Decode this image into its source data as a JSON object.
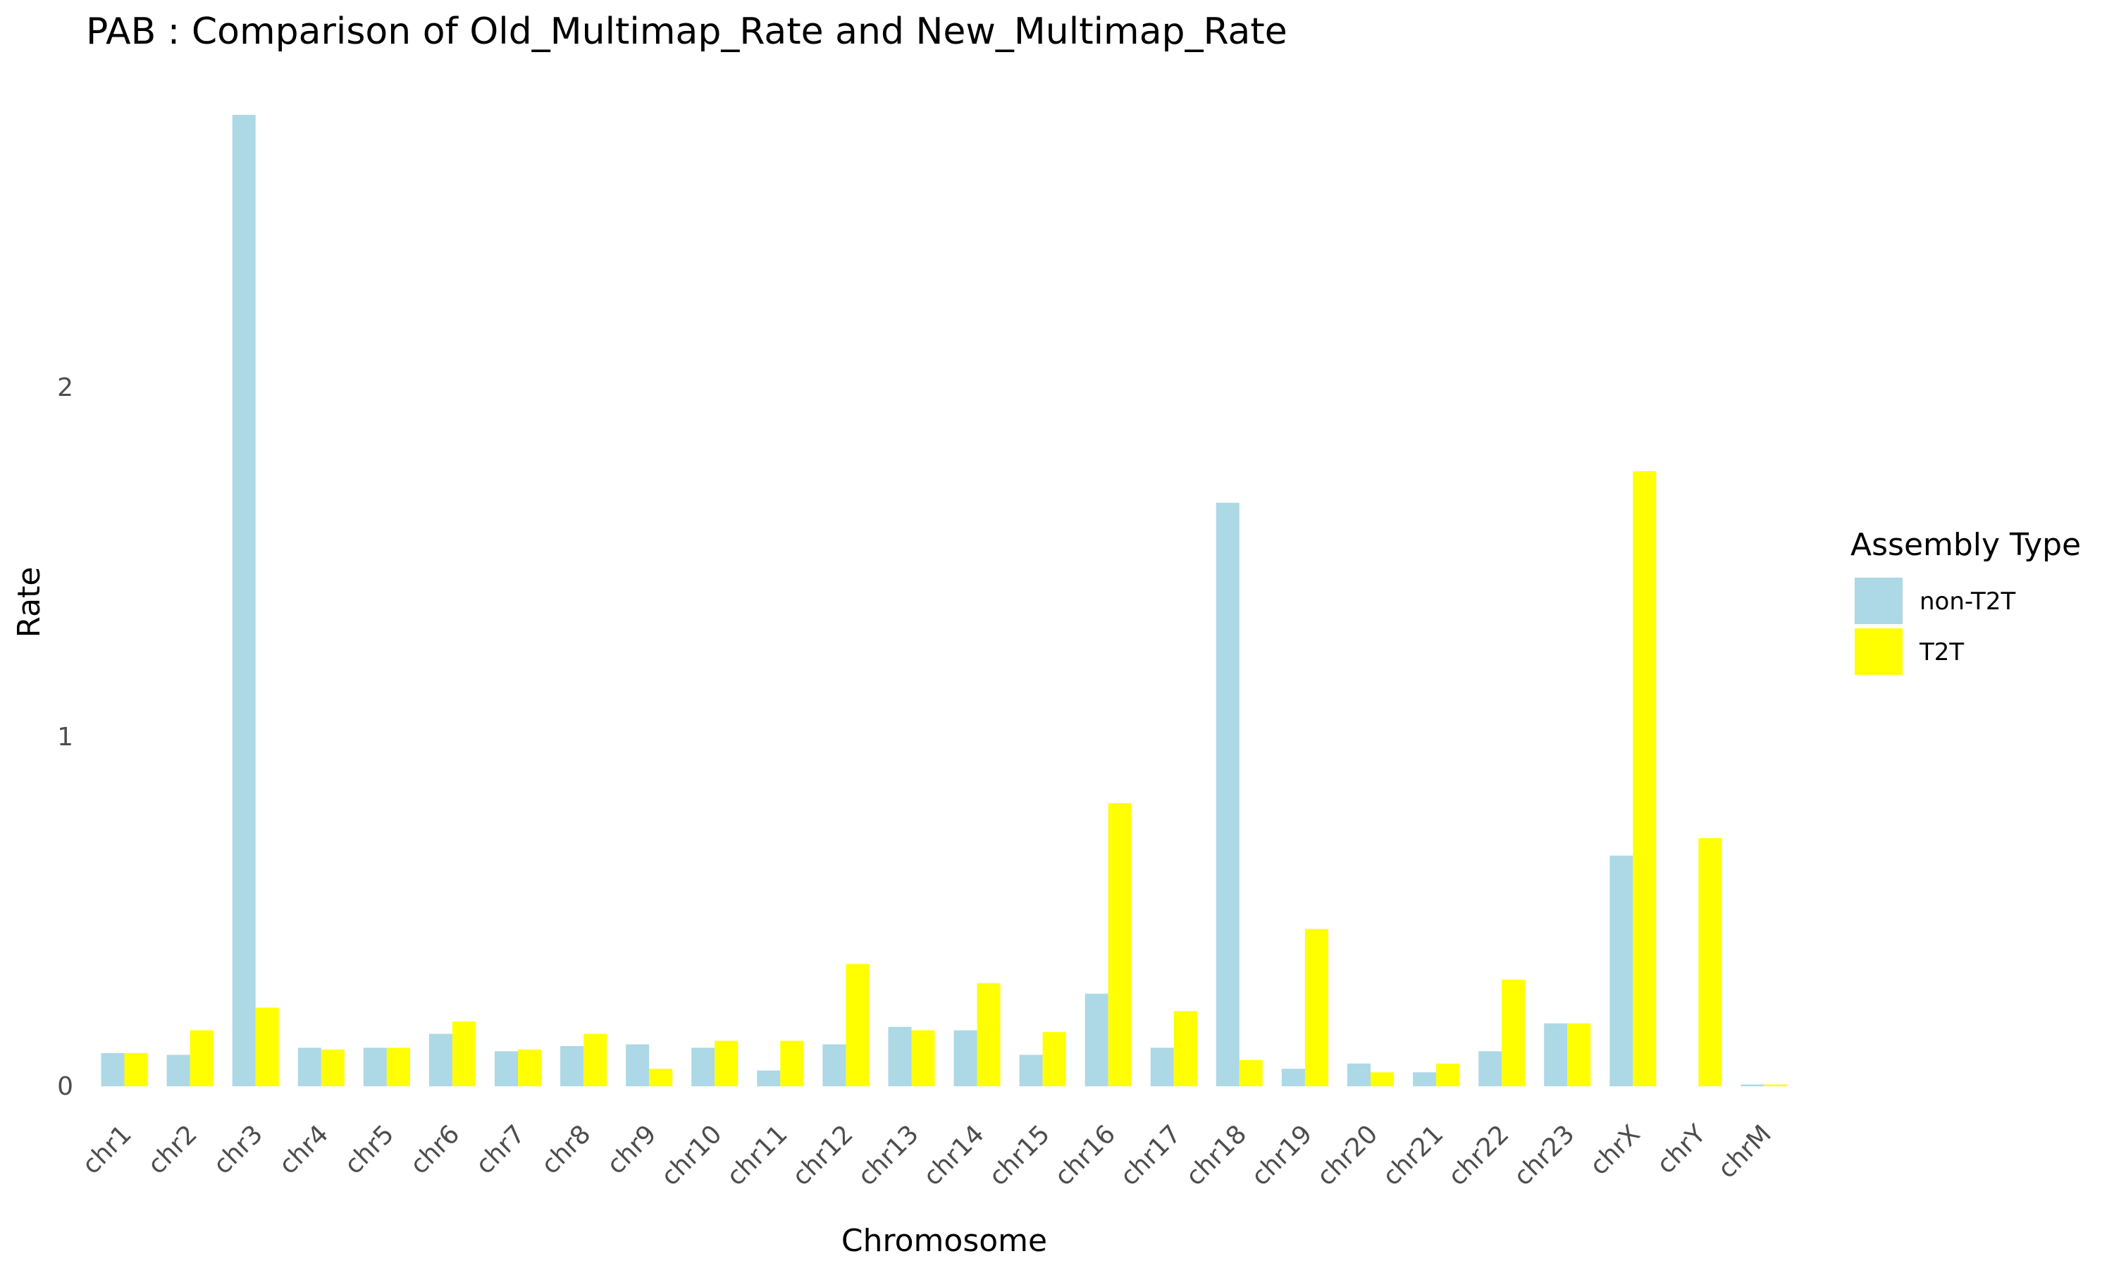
{
  "chart_data": {
    "type": "bar",
    "title": "PAB : Comparison of Old_Multimap_Rate and New_Multimap_Rate",
    "xlabel": "Chromosome",
    "ylabel": "Rate",
    "categories": [
      "chr1",
      "chr2",
      "chr3",
      "chr4",
      "chr5",
      "chr6",
      "chr7",
      "chr8",
      "chr9",
      "chr10",
      "chr11",
      "chr12",
      "chr13",
      "chr14",
      "chr15",
      "chr16",
      "chr17",
      "chr18",
      "chr19",
      "chr20",
      "chr21",
      "chr22",
      "chr23",
      "chrX",
      "chrY",
      "chrM"
    ],
    "series": [
      {
        "name": "non-T2T",
        "color": "#ADD8E6",
        "values": [
          0.095,
          0.09,
          2.78,
          0.11,
          0.11,
          0.15,
          0.1,
          0.115,
          0.12,
          0.11,
          0.045,
          0.12,
          0.17,
          0.16,
          0.09,
          0.265,
          0.11,
          1.67,
          0.05,
          0.065,
          0.04,
          0.1,
          0.18,
          0.66,
          0.0,
          0.005
        ]
      },
      {
        "name": "T2T",
        "color": "#FFFF00",
        "values": [
          0.095,
          0.16,
          0.225,
          0.105,
          0.11,
          0.185,
          0.105,
          0.15,
          0.05,
          0.13,
          0.13,
          0.35,
          0.16,
          0.295,
          0.155,
          0.81,
          0.215,
          0.075,
          0.45,
          0.04,
          0.065,
          0.305,
          0.18,
          1.76,
          0.71,
          0.005
        ]
      }
    ],
    "yticks": [
      0,
      1,
      2
    ],
    "ylim": [
      0,
      2.8
    ],
    "grid": false,
    "legend": {
      "title": "Assembly Type",
      "placement": "right"
    }
  }
}
